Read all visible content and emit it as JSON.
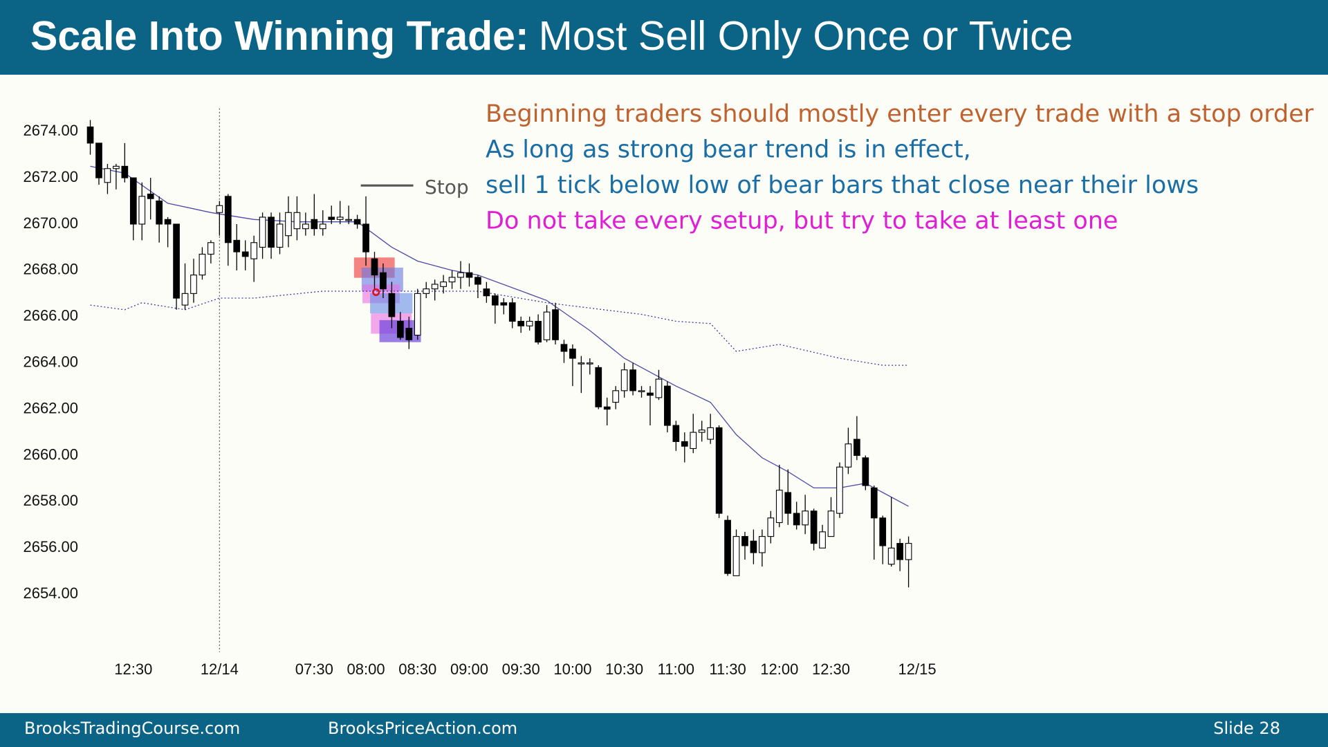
{
  "header": {
    "title_bold": "Scale Into Winning Trade:",
    "title_rest": "Most Sell Only Once or Twice"
  },
  "chart_data": {
    "type": "candlestick",
    "categories": [
      null,
      null,
      null,
      null,
      null,
      "12:30",
      null,
      null,
      null,
      null,
      null,
      null,
      null,
      null,
      null,
      "12/14",
      null,
      null,
      null,
      null,
      null,
      null,
      null,
      null,
      null,
      null,
      "07:30",
      null,
      null,
      null,
      null,
      null,
      "08:00",
      null,
      null,
      null,
      null,
      null,
      "08:30",
      null,
      null,
      null,
      null,
      null,
      "09:00",
      null,
      null,
      null,
      null,
      null,
      "09:30",
      null,
      null,
      null,
      null,
      null,
      "10:00",
      null,
      null,
      null,
      null,
      null,
      "10:30",
      null,
      null,
      null,
      null,
      null,
      "11:00",
      null,
      null,
      null,
      null,
      null,
      "11:30",
      null,
      null,
      null,
      null,
      null,
      "12:00",
      null,
      null,
      null,
      null,
      null,
      "12:30",
      null,
      null,
      null,
      null,
      null,
      null,
      null,
      null,
      null,
      "12/15"
    ],
    "open": [
      2674.2,
      2673.5,
      2671.8,
      2672.4,
      2672.5,
      2672,
      2670,
      2671.3,
      2671,
      2670.2,
      2670,
      2666.5,
      2667,
      2667.8,
      2668.7,
      2670.5,
      2671.2,
      2669.3,
      2668.8,
      2668.5,
      2669,
      2670.3,
      2669,
      2669.5,
      2669.8,
      2669.8,
      2670.2,
      2669.8,
      2670.3,
      2670.2,
      2670.2,
      2670.2,
      2670,
      2668.5,
      2667.9,
      2667,
      2665.8,
      2665.5,
      2665.2,
      2667,
      2667.2,
      2667.3,
      2667.5,
      2667.7,
      2667.9,
      2667.7,
      2667.2,
      2666.9,
      2666.6,
      2666.6,
      2665.8,
      2665.6,
      2665.8,
      2665,
      2666.3,
      2664.8,
      2664.6,
      2664,
      2664,
      2663.8,
      2662.1,
      2662.3,
      2662.8,
      2663.7,
      2662.8,
      2662.7,
      2662.5,
      2663,
      2661.3,
      2660.6,
      2660.3,
      2661,
      2660.7,
      2661.2,
      2657.2,
      2654.8,
      2656.5,
      2656.3,
      2655.8,
      2656.5,
      2657.1,
      2658.4,
      2657.5,
      2657,
      2657.6,
      2656,
      2656.5,
      2657.5,
      2659.5,
      2660.7,
      2659.9,
      2658.6,
      2657.3,
      2655.3,
      2656.2,
      2655.5,
      null
    ],
    "high": [
      2674.5,
      2673.5,
      2672.6,
      2672.6,
      2673.5,
      2672,
      2671.8,
      2672,
      2671.2,
      2670.3,
      2670,
      2668.3,
      2668.5,
      2669,
      2669.3,
      2671,
      2671.3,
      2670,
      2669.3,
      2669.5,
      2670.5,
      2670.5,
      2670.5,
      2671.2,
      2671.2,
      2670.5,
      2671.3,
      2670.6,
      2670.8,
      2671,
      2670.8,
      2670.4,
      2671.2,
      2668.8,
      2668.3,
      2667.5,
      2666.2,
      2666,
      2667.2,
      2667.5,
      2667.6,
      2667.8,
      2668,
      2668.4,
      2668.3,
      2667.8,
      2667.5,
      2667,
      2666.8,
      2666.8,
      2666,
      2666,
      2666.1,
      2666.5,
      2666.6,
      2665,
      2664.8,
      2664.3,
      2664.2,
      2663.9,
      2662.5,
      2663,
      2664,
      2664,
      2663,
      2663,
      2663.7,
      2663.2,
      2661.5,
      2661,
      2661.8,
      2661.5,
      2661.8,
      2661.3,
      2657.4,
      2656.8,
      2656.7,
      2656.8,
      2656.8,
      2657.6,
      2659.6,
      2659.4,
      2658,
      2658.3,
      2657.7,
      2657,
      2658.2,
      2659.7,
      2661.2,
      2661.7,
      2660,
      2658.7,
      2657.4,
      2658.2,
      2656.4,
      2656.5,
      null
    ],
    "low": [
      2673,
      2671.7,
      2671.3,
      2671.5,
      2671.8,
      2669.3,
      2669.3,
      2670.2,
      2669.2,
      2669,
      2666.3,
      2666.3,
      2666.6,
      2667.6,
      2668.3,
      2669.5,
      2668.2,
      2668,
      2668,
      2667.5,
      2668.5,
      2668.5,
      2668.7,
      2669,
      2669.3,
      2669.5,
      2669.5,
      2669.5,
      2670,
      2670,
      2670,
      2669.8,
      2668.2,
      2667.2,
      2666.8,
      2665.5,
      2665,
      2664.6,
      2665,
      2666.8,
      2666.7,
      2667,
      2667.2,
      2667.2,
      2667.3,
      2666.8,
      2666.6,
      2665.7,
      2666.1,
      2665.5,
      2665.3,
      2665.4,
      2664.8,
      2664.9,
      2664.8,
      2664,
      2663,
      2662.7,
      2663.5,
      2662,
      2661.3,
      2662,
      2662.5,
      2662.6,
      2662.5,
      2661.3,
      2662.4,
      2661,
      2660.2,
      2659.7,
      2660.1,
      2660.6,
      2660.5,
      2657.3,
      2654.8,
      2654.8,
      2655.5,
      2655.3,
      2655.2,
      2656.2,
      2656.9,
      2657,
      2656.8,
      2656.6,
      2655.9,
      2656,
      2656.5,
      2657.3,
      2659.2,
      2659.8,
      2658.5,
      2655.5,
      2655.3,
      2655.2,
      2655,
      2654.3,
      null
    ],
    "close": [
      2673.5,
      2672,
      2672.4,
      2672.5,
      2672,
      2670,
      2671.2,
      2671.1,
      2670,
      2670,
      2666.8,
      2667,
      2667.8,
      2668.7,
      2669.2,
      2670.8,
      2669.2,
      2668.8,
      2668.6,
      2669.2,
      2670.3,
      2669,
      2670,
      2670.5,
      2670.5,
      2670,
      2669.8,
      2670,
      2670.2,
      2670.3,
      2670.2,
      2670,
      2668.8,
      2667.8,
      2667.2,
      2666,
      2665.1,
      2665,
      2667,
      2667.2,
      2667.4,
      2667.5,
      2667.7,
      2667.9,
      2667.7,
      2667.4,
      2666.9,
      2666.5,
      2666.5,
      2665.8,
      2665.6,
      2665.8,
      2664.9,
      2666.2,
      2665,
      2664.5,
      2664.2,
      2664,
      2664,
      2662.1,
      2662,
      2662.8,
      2663.7,
      2662.8,
      2662.8,
      2662.6,
      2663.3,
      2661.3,
      2660.6,
      2660.4,
      2661,
      2661.1,
      2661.2,
      2657.5,
      2654.9,
      2656.5,
      2656.1,
      2655.8,
      2656.5,
      2657.3,
      2658.5,
      2657.5,
      2657,
      2657.6,
      2656.2,
      2656.7,
      2657.6,
      2659.5,
      2660.5,
      2660,
      2658.7,
      2657.3,
      2656.1,
      2656,
      2655.5,
      2656.2,
      null
    ],
    "up_color": "#ffffff",
    "down_color": "#000000",
    "ylim": [
      2651.5,
      2675
    ],
    "yticks": [
      {
        "value": 2654,
        "label": "2654.00"
      },
      {
        "value": 2656,
        "label": "2656.00"
      },
      {
        "value": 2658,
        "label": "2658.00"
      },
      {
        "value": 2660,
        "label": "2660.00"
      },
      {
        "value": 2662,
        "label": "2662.00"
      },
      {
        "value": 2664,
        "label": "2664.00"
      },
      {
        "value": 2666,
        "label": "2666.00"
      },
      {
        "value": 2668,
        "label": "2668.00"
      },
      {
        "value": 2670,
        "label": "2670.00"
      },
      {
        "value": 2672,
        "label": "2672.00"
      },
      {
        "value": 2674,
        "label": "2674.00"
      }
    ],
    "lines": [
      {
        "color": "#4a4aa8",
        "style": "solid",
        "x": [
          0,
          4,
          9,
          14,
          19,
          24,
          31,
          35,
          38,
          42,
          45,
          53,
          58,
          62,
          68,
          72,
          75,
          78,
          81,
          84,
          87,
          90,
          92,
          95
        ],
        "values": [
          2672.5,
          2672.2,
          2670.9,
          2670.5,
          2670.2,
          2670.1,
          2670.1,
          2669,
          2668.4,
          2668,
          2667.8,
          2666.7,
          2665.4,
          2664.2,
          2663,
          2662.3,
          2660.9,
          2659.9,
          2659.3,
          2658.6,
          2658.6,
          2658.8,
          2658.4,
          2657.8
        ]
      },
      {
        "color": "#3a3aa8",
        "style": "dotted",
        "x": [
          0,
          4,
          6,
          11,
          15,
          19,
          27,
          32,
          41,
          45,
          53,
          64,
          68,
          72,
          75,
          80,
          87,
          92,
          95
        ],
        "values": [
          2666.5,
          2666.3,
          2666.6,
          2666.3,
          2666.8,
          2666.8,
          2667.1,
          2667.1,
          2667.1,
          2667.1,
          2666.6,
          2666.1,
          2665.8,
          2665.7,
          2664.5,
          2664.8,
          2664.2,
          2663.9,
          2663.9
        ]
      }
    ],
    "session_break": 15,
    "stop_label": "Stop",
    "annotations": [
      {
        "text": "Beginning traders should mostly enter every trade with a stop order",
        "color": "#c0622f"
      },
      {
        "text": "As long as strong bear trend is in effect,",
        "color": "#1a6ea6"
      },
      {
        "text": "sell 1 tick below low of bear bars that close near their lows",
        "color": "#1a6ea6"
      },
      {
        "text": "Do not take every setup, but try to take at least one",
        "color": "#e01ed6"
      }
    ]
  },
  "footer": {
    "left": "BrooksTradingCourse.com",
    "center": "BrooksPriceAction.com",
    "slide": "Slide  28"
  }
}
